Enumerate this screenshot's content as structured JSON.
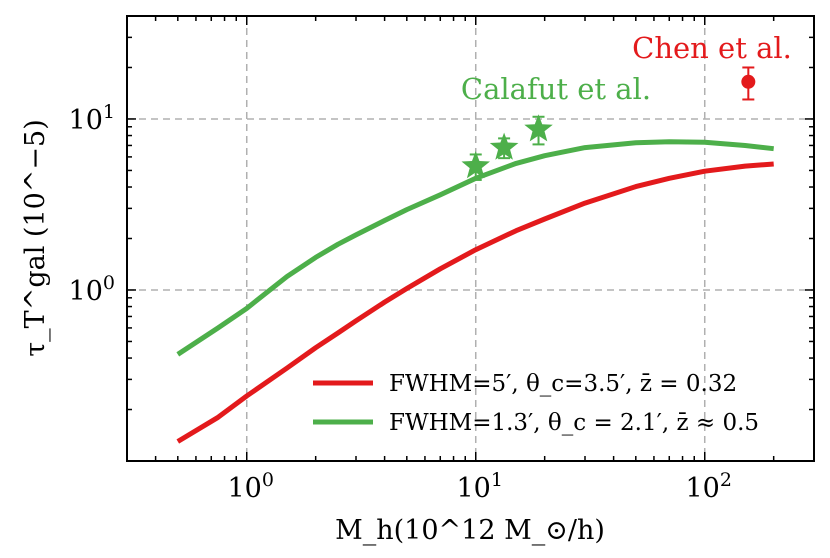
{
  "chart_data": {
    "type": "line",
    "xscale": "log",
    "yscale": "log",
    "xlim": [
      0.3,
      300
    ],
    "ylim": [
      0.1,
      40
    ],
    "grid": true,
    "xlabel": "M_h(10^12 M_⊙/h)",
    "ylabel": "τ_T^gal (10^−5)",
    "x_ticks": [
      1,
      10,
      100
    ],
    "y_ticks": [
      1,
      10
    ],
    "tick_labels": {
      "x": [
        [
          "10",
          "0"
        ],
        [
          "10",
          "1"
        ],
        [
          "10",
          "2"
        ]
      ],
      "y": [
        [
          "10",
          "0"
        ],
        [
          "10",
          "1"
        ]
      ]
    },
    "legend_position": "lower-right",
    "colors": {
      "red": "#e31a1c",
      "green": "#4daf4a"
    },
    "series": [
      {
        "name": "FWHM=5′, θ_c=3.5′, z̄ = 0.32",
        "color": "#e31a1c",
        "x": [
          0.5,
          0.75,
          1,
          1.5,
          2,
          2.5,
          3,
          4,
          5,
          7,
          10,
          15,
          20,
          30,
          50,
          70,
          100,
          150,
          200
        ],
        "y": [
          0.13,
          0.18,
          0.24,
          0.35,
          0.46,
          0.56,
          0.66,
          0.85,
          1.02,
          1.33,
          1.72,
          2.22,
          2.6,
          3.22,
          4.02,
          4.5,
          4.95,
          5.3,
          5.45
        ]
      },
      {
        "name": "FWHM=1.3′, θ_c = 2.1′, z̄ ≈ 0.5",
        "color": "#4daf4a",
        "x": [
          0.5,
          0.75,
          1,
          1.5,
          2,
          2.5,
          3,
          4,
          5,
          7,
          10,
          15,
          20,
          30,
          50,
          70,
          100,
          150,
          200
        ],
        "y": [
          0.42,
          0.6,
          0.78,
          1.2,
          1.55,
          1.85,
          2.1,
          2.55,
          2.95,
          3.6,
          4.5,
          5.5,
          6.1,
          6.8,
          7.25,
          7.35,
          7.3,
          7.0,
          6.7
        ]
      }
    ],
    "measurements": [
      {
        "label": "Calafut et al.",
        "color": "#4daf4a",
        "marker": "star",
        "points": [
          {
            "x": 10,
            "y": 5.3,
            "err": 0.9
          },
          {
            "x": 13.3,
            "y": 6.8,
            "err": 0.9
          },
          {
            "x": 18.8,
            "y": 8.7,
            "err": 1.6
          }
        ]
      },
      {
        "label": "Chen et al.",
        "color": "#e31a1c",
        "marker": "circle",
        "points": [
          {
            "x": 155,
            "y": 16.5,
            "err": 3.5
          }
        ]
      }
    ]
  }
}
